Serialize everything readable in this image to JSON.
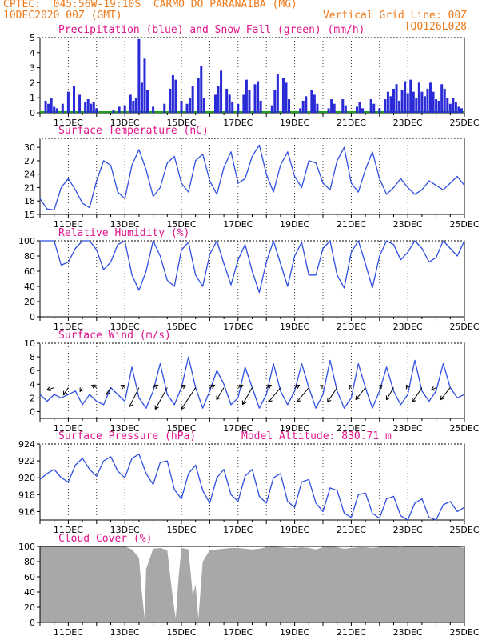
{
  "header": {
    "line1": "CPTEC:  045:56W-19:10S  CARMO DO PARANAIBA (MG)",
    "line2": "10DEC2020 00Z (GMT)",
    "grid_note": "Vertical Grid Line: 00Z",
    "code": "TQ0126L028"
  },
  "colors": {
    "precip": "#2a2ad6",
    "snow": "#1aa01a",
    "line": "#2f4fe0",
    "cloud": "#a8a8a8",
    "title": "#e0148c",
    "header": "#ee7a1a",
    "arrow": "#000000"
  },
  "x_axis": {
    "start": "10DEC2020 00Z",
    "end": "25DEC2020 00Z",
    "tick_labels": [
      "11DEC",
      "13DEC",
      "15DEC",
      "17DEC",
      "19DEC",
      "21DEC",
      "23DEC",
      "25DEC"
    ],
    "tick_days": [
      11,
      13,
      15,
      17,
      19,
      21,
      23,
      25
    ]
  },
  "chart_data": [
    {
      "id": "precip",
      "type": "bar",
      "title": "Precipitation (blue) and Snow Fall (green) (mm/h)",
      "ylim": [
        0,
        5
      ],
      "yticks": [
        "0",
        "1",
        "2",
        "3",
        "4",
        "5"
      ],
      "x_unit": "day of December 2020",
      "x": [
        10.2,
        10.3,
        10.4,
        10.5,
        10.6,
        10.8,
        11.0,
        11.2,
        11.4,
        11.6,
        11.7,
        11.8,
        11.9,
        12.0,
        12.6,
        12.8,
        13.0,
        13.2,
        13.3,
        13.4,
        13.5,
        13.6,
        13.7,
        13.8,
        14.0,
        14.4,
        14.6,
        14.7,
        14.8,
        15.0,
        15.2,
        15.3,
        15.4,
        15.6,
        15.7,
        15.8,
        16.2,
        16.3,
        16.4,
        16.6,
        16.7,
        16.8,
        17.0,
        17.2,
        17.3,
        17.4,
        17.6,
        17.7,
        17.8,
        18.2,
        18.3,
        18.4,
        18.6,
        18.7,
        18.8,
        19.2,
        19.3,
        19.4,
        19.6,
        19.7,
        19.8,
        20.2,
        20.3,
        20.4,
        20.7,
        20.8,
        21.2,
        21.3,
        21.4,
        21.7,
        21.8,
        22.0,
        22.2,
        22.3,
        22.4,
        22.5,
        22.6,
        22.7,
        22.8,
        22.9,
        23.0,
        23.1,
        23.2,
        23.3,
        23.4,
        23.5,
        23.6,
        23.7,
        23.8,
        23.9,
        24.0,
        24.1,
        24.2,
        24.3,
        24.4,
        24.5,
        24.6,
        24.7,
        24.8,
        24.9
      ],
      "series": [
        {
          "values": [
            0.8,
            0.6,
            1.0,
            0.4,
            0.3,
            0.6,
            1.4,
            1.8,
            1.2,
            0.7,
            0.9,
            0.6,
            0.7,
            0.3,
            0.2,
            0.4,
            0.5,
            1.2,
            0.8,
            1.0,
            4.9,
            2.0,
            3.6,
            1.5,
            0.4,
            0.6,
            1.6,
            2.5,
            2.2,
            0.8,
            0.6,
            1.0,
            1.8,
            2.3,
            3.1,
            1.0,
            1.2,
            1.8,
            2.8,
            1.6,
            1.2,
            0.7,
            0.6,
            1.2,
            2.2,
            1.5,
            1.9,
            2.1,
            0.8,
            0.5,
            1.5,
            2.6,
            2.3,
            2.0,
            0.9,
            0.3,
            0.8,
            1.1,
            1.5,
            1.2,
            0.6,
            0.3,
            0.9,
            0.6,
            0.9,
            0.5,
            0.4,
            0.7,
            0.3,
            0.9,
            0.6,
            0.3,
            0.9,
            1.4,
            1.1,
            1.6,
            1.9,
            0.8,
            1.5,
            2.1,
            1.3,
            2.2,
            1.4,
            1.0,
            2.0,
            1.4,
            1.1,
            1.6,
            2.0,
            1.4,
            0.9,
            0.8,
            1.9,
            1.6,
            1.0,
            0.6,
            1.0,
            0.7,
            0.4,
            0.3
          ]
        }
      ]
    },
    {
      "id": "temp",
      "type": "line",
      "title": "Surface Temperature (nC)",
      "ylim": [
        15,
        32
      ],
      "yticks": [
        "15",
        "18",
        "21",
        "24",
        "27",
        "30"
      ],
      "x_unit": "day of December 2020",
      "x": [
        10.0,
        10.25,
        10.5,
        10.75,
        11.0,
        11.25,
        11.5,
        11.75,
        12.0,
        12.25,
        12.5,
        12.75,
        13.0,
        13.25,
        13.5,
        13.75,
        14.0,
        14.25,
        14.5,
        14.75,
        15.0,
        15.25,
        15.5,
        15.75,
        16.0,
        16.25,
        16.5,
        16.75,
        17.0,
        17.25,
        17.5,
        17.75,
        18.0,
        18.25,
        18.5,
        18.75,
        19.0,
        19.25,
        19.5,
        19.75,
        20.0,
        20.25,
        20.5,
        20.75,
        21.0,
        21.25,
        21.5,
        21.75,
        22.0,
        22.25,
        22.5,
        22.75,
        23.0,
        23.25,
        23.5,
        23.75,
        24.0,
        24.25,
        24.5,
        24.75,
        25.0
      ],
      "series": [
        {
          "values": [
            18.5,
            16.2,
            16.0,
            21.0,
            23.0,
            20.5,
            17.5,
            16.5,
            22.5,
            27.0,
            26.0,
            20.0,
            18.5,
            26.0,
            29.5,
            25.0,
            19.0,
            21.0,
            26.5,
            28.0,
            22.0,
            20.0,
            27.0,
            28.5,
            22.5,
            19.5,
            25.5,
            29.0,
            22.0,
            23.0,
            28.0,
            30.5,
            24.0,
            20.0,
            26.0,
            29.0,
            23.5,
            21.0,
            27.0,
            26.5,
            22.0,
            20.5,
            27.0,
            30.0,
            22.0,
            20.0,
            25.0,
            29.0,
            23.0,
            19.5,
            21.0,
            23.0,
            21.0,
            19.5,
            20.5,
            22.5,
            21.5,
            20.5,
            22.0,
            23.5,
            21.5
          ]
        }
      ]
    },
    {
      "id": "rh",
      "type": "line",
      "title": "Relative Humidity (%)",
      "ylim": [
        0,
        100
      ],
      "yticks": [
        "0",
        "20",
        "40",
        "60",
        "80",
        "100"
      ],
      "x_unit": "day of December 2020",
      "x": [
        10.0,
        10.25,
        10.5,
        10.75,
        11.0,
        11.25,
        11.5,
        11.75,
        12.0,
        12.25,
        12.5,
        12.75,
        13.0,
        13.25,
        13.5,
        13.75,
        14.0,
        14.25,
        14.5,
        14.75,
        15.0,
        15.25,
        15.5,
        15.75,
        16.0,
        16.25,
        16.5,
        16.75,
        17.0,
        17.25,
        17.5,
        17.75,
        18.0,
        18.25,
        18.5,
        18.75,
        19.0,
        19.25,
        19.5,
        19.75,
        20.0,
        20.25,
        20.5,
        20.75,
        21.0,
        21.25,
        21.5,
        21.75,
        22.0,
        22.25,
        22.5,
        22.75,
        23.0,
        23.25,
        23.5,
        23.75,
        24.0,
        24.25,
        24.5,
        24.75,
        25.0
      ],
      "series": [
        {
          "values": [
            100,
            100,
            100,
            68,
            72,
            90,
            100,
            100,
            88,
            62,
            72,
            95,
            100,
            55,
            35,
            60,
            100,
            80,
            48,
            40,
            88,
            98,
            55,
            40,
            82,
            100,
            70,
            42,
            75,
            95,
            60,
            32,
            72,
            100,
            70,
            40,
            80,
            98,
            55,
            55,
            90,
            100,
            55,
            38,
            85,
            100,
            70,
            38,
            80,
            100,
            95,
            75,
            85,
            100,
            90,
            72,
            78,
            100,
            90,
            80,
            100
          ]
        }
      ]
    },
    {
      "id": "wind",
      "type": "line",
      "title": "Surface Wind (m/s)",
      "ylim": [
        -1,
        10
      ],
      "yticks": [
        "0",
        "2",
        "4",
        "6",
        "8",
        "10"
      ],
      "x_unit": "day of December 2020",
      "x": [
        10.0,
        10.25,
        10.5,
        10.75,
        11.0,
        11.25,
        11.5,
        11.75,
        12.0,
        12.25,
        12.5,
        12.75,
        13.0,
        13.25,
        13.5,
        13.75,
        14.0,
        14.25,
        14.5,
        14.75,
        15.0,
        15.25,
        15.5,
        15.75,
        16.0,
        16.25,
        16.5,
        16.75,
        17.0,
        17.25,
        17.5,
        17.75,
        18.0,
        18.25,
        18.5,
        18.75,
        19.0,
        19.25,
        19.5,
        19.75,
        20.0,
        20.25,
        20.5,
        20.75,
        21.0,
        21.25,
        21.5,
        21.75,
        22.0,
        22.25,
        22.5,
        22.75,
        23.0,
        23.25,
        23.5,
        23.75,
        24.0,
        24.25,
        24.5,
        24.75,
        25.0
      ],
      "series": [
        {
          "values": [
            2.5,
            1.5,
            2.5,
            2.0,
            2.5,
            3.0,
            1.0,
            2.5,
            1.5,
            1.0,
            3.5,
            2.5,
            1.5,
            6.5,
            2.0,
            0.5,
            3.0,
            7.0,
            2.5,
            1.0,
            3.5,
            8.0,
            3.5,
            0.5,
            3.0,
            6.0,
            4.0,
            1.0,
            2.0,
            6.5,
            3.5,
            0.5,
            2.5,
            7.0,
            3.0,
            1.0,
            3.0,
            7.0,
            3.5,
            0.5,
            2.5,
            7.5,
            3.0,
            0.5,
            2.0,
            7.0,
            3.5,
            0.5,
            3.0,
            6.5,
            3.0,
            1.0,
            2.5,
            7.5,
            3.0,
            1.5,
            3.0,
            7.0,
            3.5,
            2.0,
            2.5
          ]
        }
      ],
      "vectors": {
        "x": [
          10.5,
          11.0,
          11.5,
          12.0,
          12.5,
          13.0,
          13.5,
          14.0,
          14.5,
          15.0,
          15.5,
          16.0,
          16.5,
          17.0,
          17.5,
          18.0,
          18.5,
          19.0,
          19.5,
          20.0,
          20.5,
          21.0,
          21.5,
          22.0,
          22.5,
          23.0,
          23.5,
          24.0,
          24.5
        ],
        "u": [
          -1.5,
          -1.0,
          -0.5,
          -1.0,
          -1.0,
          -0.8,
          -2.0,
          1.0,
          -2.5,
          0.8,
          -3.0,
          1.0,
          -1.5,
          1.0,
          -2.0,
          1.0,
          -2.5,
          1.0,
          -2.5,
          -0.5,
          -2.0,
          -0.5,
          -2.0,
          0.5,
          -1.5,
          -0.3,
          -2.0,
          -1.0,
          -2.0
        ],
        "v": [
          -0.5,
          -1.5,
          -0.8,
          0.5,
          -1.5,
          0.5,
          -4.0,
          0.5,
          -4.5,
          0.5,
          -4.5,
          0.5,
          -2.5,
          0.5,
          -3.5,
          0.5,
          -3.0,
          0.5,
          -3.0,
          0.5,
          -3.0,
          0.5,
          -2.5,
          0.5,
          -2.5,
          0.5,
          -3.0,
          -0.5,
          -2.5
        ]
      }
    },
    {
      "id": "pressure",
      "type": "line",
      "title": "Surface Pressure (hPa)",
      "annotation": "Model Altitude: 830.71 m",
      "ylim": [
        915,
        924
      ],
      "yticks": [
        "916",
        "918",
        "920",
        "922",
        "924"
      ],
      "x_unit": "day of December 2020",
      "x": [
        10.0,
        10.25,
        10.5,
        10.75,
        11.0,
        11.25,
        11.5,
        11.75,
        12.0,
        12.25,
        12.5,
        12.75,
        13.0,
        13.25,
        13.5,
        13.75,
        14.0,
        14.25,
        14.5,
        14.75,
        15.0,
        15.25,
        15.5,
        15.75,
        16.0,
        16.25,
        16.5,
        16.75,
        17.0,
        17.25,
        17.5,
        17.75,
        18.0,
        18.25,
        18.5,
        18.75,
        19.0,
        19.25,
        19.5,
        19.75,
        20.0,
        20.25,
        20.5,
        20.75,
        21.0,
        21.25,
        21.5,
        21.75,
        22.0,
        22.25,
        22.5,
        22.75,
        23.0,
        23.25,
        23.5,
        23.75,
        24.0,
        24.25,
        24.5,
        24.75,
        25.0
      ],
      "series": [
        {
          "values": [
            919.8,
            920.5,
            921.0,
            920.0,
            919.5,
            921.5,
            922.3,
            921.0,
            920.2,
            922.0,
            922.5,
            920.8,
            920.0,
            922.3,
            922.8,
            920.5,
            919.2,
            921.8,
            922.0,
            918.6,
            917.5,
            920.5,
            921.5,
            918.5,
            917.0,
            920.0,
            921.0,
            918.0,
            917.2,
            920.2,
            921.0,
            917.8,
            917.0,
            920.0,
            920.5,
            917.2,
            916.5,
            919.5,
            919.8,
            917.0,
            916.0,
            918.8,
            918.5,
            915.8,
            915.3,
            918.0,
            918.2,
            915.8,
            915.2,
            917.5,
            917.8,
            915.5,
            914.8,
            917.0,
            917.5,
            915.3,
            914.6,
            916.8,
            917.2,
            916.0,
            916.5
          ]
        }
      ]
    },
    {
      "id": "cloud",
      "type": "area",
      "title": "Cloud Cover (%)",
      "ylim": [
        0,
        100
      ],
      "yticks": [
        "0",
        "20",
        "40",
        "60",
        "80",
        "100"
      ],
      "x_unit": "day of December 2020",
      "x": [
        10.0,
        10.25,
        10.5,
        10.75,
        11.0,
        11.25,
        11.5,
        11.75,
        12.0,
        12.25,
        12.5,
        12.75,
        13.0,
        13.25,
        13.5,
        13.6,
        13.7,
        13.75,
        14.0,
        14.25,
        14.5,
        14.7,
        14.8,
        14.9,
        15.0,
        15.25,
        15.4,
        15.5,
        15.6,
        15.75,
        16.0,
        16.25,
        16.5,
        16.75,
        17.0,
        17.25,
        17.5,
        17.75,
        18.0,
        18.25,
        18.5,
        18.75,
        19.0,
        19.25,
        19.5,
        19.75,
        20.0,
        20.25,
        20.5,
        20.75,
        21.0,
        21.25,
        21.5,
        21.75,
        22.0,
        22.25,
        22.5,
        22.75,
        23.0,
        23.25,
        23.5,
        23.75,
        24.0,
        24.25,
        24.5,
        24.75,
        25.0
      ],
      "series": [
        {
          "values": [
            100,
            100,
            100,
            100,
            100,
            100,
            100,
            100,
            100,
            100,
            100,
            100,
            100,
            96,
            85,
            40,
            5,
            70,
            97,
            98,
            95,
            30,
            5,
            60,
            98,
            96,
            35,
            50,
            5,
            80,
            95,
            96,
            97,
            98,
            98,
            97,
            96,
            97,
            99,
            100,
            99,
            98,
            98,
            99,
            98,
            96,
            99,
            100,
            99,
            97,
            98,
            99,
            99,
            98,
            99,
            100,
            100,
            99,
            100,
            100,
            100,
            100,
            99,
            100,
            100,
            100,
            98
          ]
        }
      ]
    }
  ]
}
